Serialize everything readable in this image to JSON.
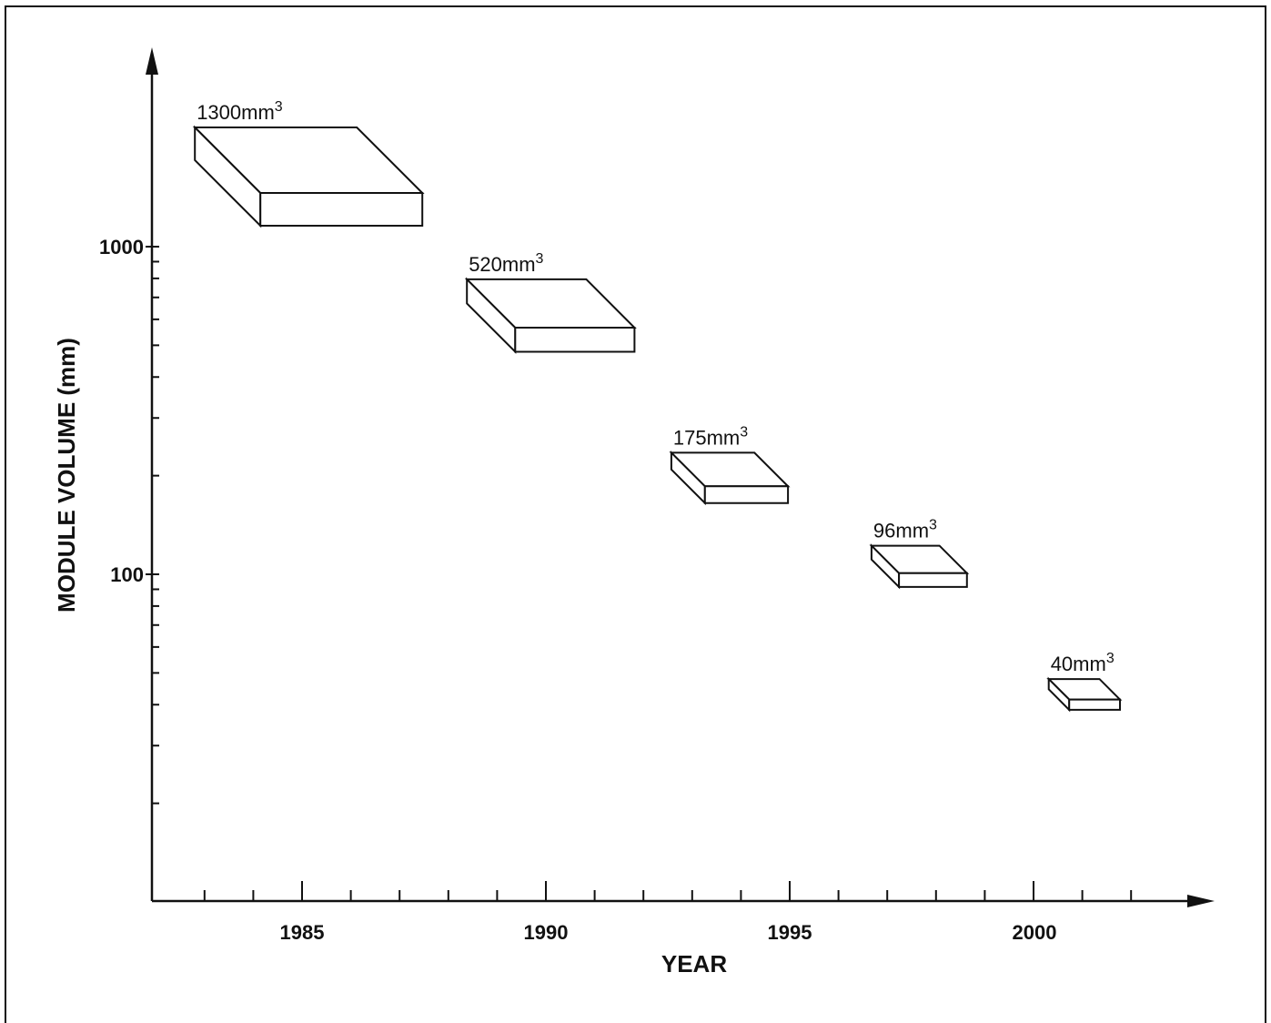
{
  "chart_data": {
    "type": "scatter",
    "title": "",
    "xlabel": "YEAR",
    "ylabel": "MODULE VOLUME (mm)",
    "x_ticks": [
      "1985",
      "1990",
      "1995",
      "2000"
    ],
    "y_ticks": [
      "1000",
      "100"
    ],
    "y_scale": "log",
    "xlim": [
      1982,
      2003
    ],
    "ylim": [
      12,
      3000
    ],
    "grid": false,
    "legend": "none",
    "unit_label": "mm",
    "unit_superscript": "3",
    "points": [
      {
        "label": "1300",
        "year": 1985,
        "volume": 1300
      },
      {
        "label": "520",
        "year": 1990,
        "volume": 520
      },
      {
        "label": "175",
        "year": 1993.7,
        "volume": 175
      },
      {
        "label": "96",
        "year": 1997.6,
        "volume": 96
      },
      {
        "label": "40",
        "year": 2001,
        "volume": 40
      }
    ],
    "colors": {
      "ink": "#111111",
      "box_fill": "#ffffff"
    }
  }
}
